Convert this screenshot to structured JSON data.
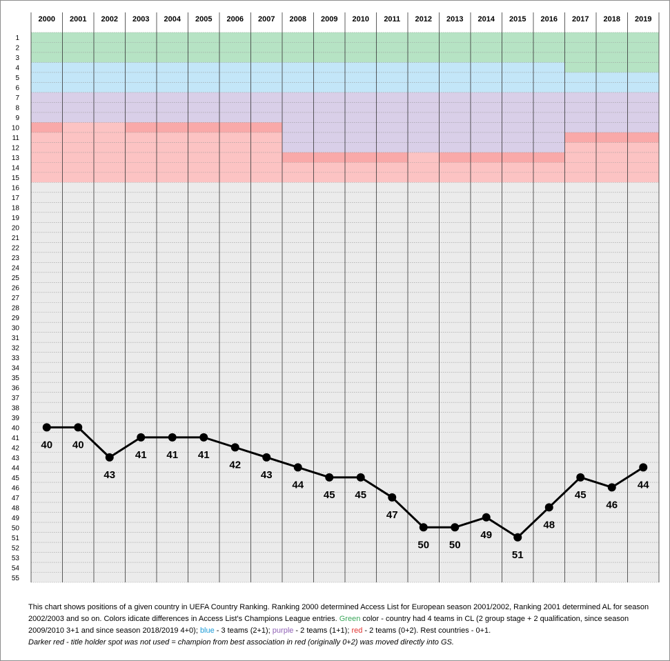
{
  "chart_data": {
    "type": "line",
    "x": [
      "2000",
      "2001",
      "2002",
      "2003",
      "2004",
      "2005",
      "2006",
      "2007",
      "2008",
      "2009",
      "2010",
      "2011",
      "2012",
      "2013",
      "2014",
      "2015",
      "2016",
      "2017",
      "2018",
      "2019"
    ],
    "values": [
      40,
      40,
      43,
      41,
      41,
      41,
      42,
      43,
      44,
      45,
      45,
      47,
      50,
      50,
      49,
      51,
      48,
      45,
      46,
      44
    ],
    "ylim": [
      1,
      55
    ],
    "y_axis_inverted": true,
    "grid": true,
    "line_color": "#000000",
    "access_zones": [
      {
        "label": "green",
        "color": "#b6e3c4",
        "ranges": [
          {
            "from": "2000",
            "to": "2016",
            "rank_from": 1,
            "rank_to": 3
          },
          {
            "from": "2017",
            "to": "2019",
            "rank_from": 1,
            "rank_to": 4
          }
        ]
      },
      {
        "label": "blue",
        "color": "#c3e6f8",
        "ranges": [
          {
            "from": "2000",
            "to": "2016",
            "rank_from": 4,
            "rank_to": 6
          },
          {
            "from": "2017",
            "to": "2019",
            "rank_from": 5,
            "rank_to": 6
          }
        ]
      },
      {
        "label": "purple",
        "color": "#d9cfe8",
        "ranges": [
          {
            "from": "2000",
            "to": "2007",
            "rank_from": 7,
            "rank_to": 9
          },
          {
            "from": "2008",
            "to": "2016",
            "rank_from": 7,
            "rank_to": 12
          },
          {
            "from": "2017",
            "to": "2019",
            "rank_from": 7,
            "rank_to": 10
          }
        ]
      },
      {
        "label": "red",
        "color": "#fcc3c3",
        "ranges": [
          {
            "from": "2000",
            "to": "2007",
            "rank_from": 10,
            "rank_to": 15
          },
          {
            "from": "2008",
            "to": "2016",
            "rank_from": 13,
            "rank_to": 15
          },
          {
            "from": "2017",
            "to": "2019",
            "rank_from": 11,
            "rank_to": 15
          }
        ]
      },
      {
        "label": "darker red",
        "color": "#f9a9a9",
        "ranges": [
          {
            "from": "2000",
            "to": "2000",
            "rank_from": 10,
            "rank_to": 10
          },
          {
            "from": "2003",
            "to": "2007",
            "rank_from": 10,
            "rank_to": 10
          },
          {
            "from": "2008",
            "to": "2011",
            "rank_from": 13,
            "rank_to": 13
          },
          {
            "from": "2013",
            "to": "2016",
            "rank_from": 13,
            "rank_to": 13
          },
          {
            "from": "2017",
            "to": "2019",
            "rank_from": 11,
            "rank_to": 11
          }
        ]
      },
      {
        "label": "rest",
        "color": "#ebebeb",
        "ranges": [
          {
            "from": "2000",
            "to": "2019",
            "rank_from": 16,
            "rank_to": 55
          }
        ]
      }
    ]
  },
  "caption": {
    "text_1": "This chart shows positions of a given country in  UEFA Country Ranking. Ranking 2000 determined Access List for European season 2001/2002, Ranking 2001 determined AL for season 2002/2003 and so on.  Colors idicate differences in Access List's Champions League entries.  ",
    "green_word": "Green",
    "text_2": " color - country had 4 teams in CL (2 group stage + 2 qualification, since season 2009/2010 3+1 and since season 2018/2019  4+0); ",
    "blue_word": "blue",
    "text_3": " - 3 teams  (2+1); ",
    "purple_word": "purple",
    "text_4": " - 2 teams (1+1); ",
    "red_word": "red",
    "text_5": " - 2 teams (0+2). Rest countries - 0+1.",
    "note": "Darker red - title holder spot was not used = champion from best association in red (originally 0+2) was moved directly into GS."
  }
}
